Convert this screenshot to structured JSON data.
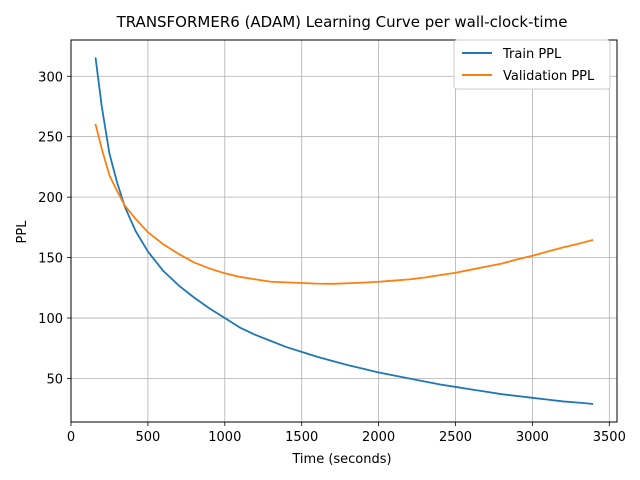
{
  "chart_data": {
    "type": "line",
    "title": "TRANSFORMER6 (ADAM) Learning Curve per wall-clock-time",
    "xlabel": "Time (seconds)",
    "ylabel": "PPL",
    "xlim": [
      0,
      3550
    ],
    "ylim": [
      14,
      330
    ],
    "xticks": [
      0,
      500,
      1000,
      1500,
      2000,
      2500,
      3000,
      3500
    ],
    "yticks": [
      50,
      100,
      150,
      200,
      250,
      300
    ],
    "grid": true,
    "legend_position": "top-right",
    "series": [
      {
        "name": "Train PPL",
        "color": "#1f77b4",
        "points": [
          [
            160,
            315
          ],
          [
            200,
            275
          ],
          [
            250,
            236
          ],
          [
            300,
            212
          ],
          [
            350,
            192
          ],
          [
            420,
            172
          ],
          [
            500,
            155
          ],
          [
            600,
            139
          ],
          [
            700,
            127
          ],
          [
            800,
            117
          ],
          [
            900,
            108
          ],
          [
            1000,
            100
          ],
          [
            1100,
            92
          ],
          [
            1200,
            86
          ],
          [
            1300,
            81
          ],
          [
            1400,
            76
          ],
          [
            1500,
            72
          ],
          [
            1600,
            68
          ],
          [
            1700,
            64.5
          ],
          [
            1800,
            61
          ],
          [
            1900,
            58
          ],
          [
            2000,
            55
          ],
          [
            2100,
            52.5
          ],
          [
            2200,
            50
          ],
          [
            2300,
            47.5
          ],
          [
            2400,
            45
          ],
          [
            2500,
            43
          ],
          [
            2600,
            41
          ],
          [
            2700,
            39
          ],
          [
            2800,
            37
          ],
          [
            2900,
            35.5
          ],
          [
            3000,
            34
          ],
          [
            3100,
            32.5
          ],
          [
            3200,
            31
          ],
          [
            3300,
            30
          ],
          [
            3390,
            29
          ]
        ]
      },
      {
        "name": "Validation PPL",
        "color": "#ff7f0e",
        "points": [
          [
            160,
            260
          ],
          [
            200,
            240
          ],
          [
            250,
            218
          ],
          [
            300,
            205
          ],
          [
            350,
            193
          ],
          [
            420,
            182
          ],
          [
            500,
            171
          ],
          [
            600,
            161
          ],
          [
            700,
            153
          ],
          [
            800,
            146
          ],
          [
            900,
            141
          ],
          [
            1000,
            137
          ],
          [
            1100,
            134
          ],
          [
            1200,
            132
          ],
          [
            1300,
            130
          ],
          [
            1400,
            129.5
          ],
          [
            1500,
            129
          ],
          [
            1600,
            128.5
          ],
          [
            1700,
            128.3
          ],
          [
            1800,
            128.8
          ],
          [
            1900,
            129.3
          ],
          [
            2000,
            130
          ],
          [
            2100,
            131
          ],
          [
            2200,
            132
          ],
          [
            2300,
            133.5
          ],
          [
            2400,
            135.5
          ],
          [
            2500,
            137.5
          ],
          [
            2600,
            140
          ],
          [
            2700,
            142.5
          ],
          [
            2800,
            145
          ],
          [
            2900,
            148.5
          ],
          [
            3000,
            151.5
          ],
          [
            3100,
            155
          ],
          [
            3200,
            158.5
          ],
          [
            3300,
            161.5
          ],
          [
            3390,
            164.5
          ]
        ]
      }
    ]
  }
}
